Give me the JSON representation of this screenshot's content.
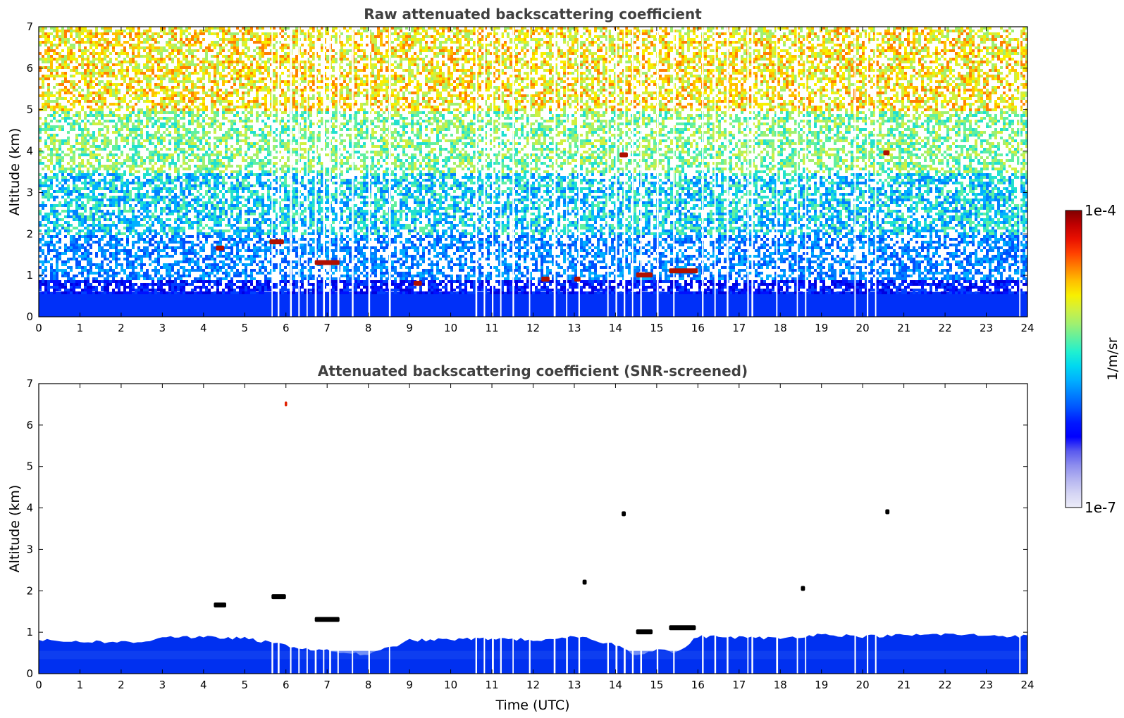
{
  "chart_data": [
    {
      "type": "heatmap",
      "title": "Raw attenuated backscattering coefficient",
      "xlabel": "",
      "ylabel": "Altitude (km)",
      "xlim": [
        0,
        24
      ],
      "ylim": [
        0,
        7
      ],
      "xticks": [
        "0",
        "1",
        "2",
        "3",
        "4",
        "5",
        "6",
        "7",
        "8",
        "9",
        "10",
        "11",
        "12",
        "13",
        "14",
        "15",
        "16",
        "17",
        "18",
        "19",
        "20",
        "21",
        "22",
        "23",
        "24"
      ],
      "yticks": [
        "0",
        "1",
        "2",
        "3",
        "4",
        "5",
        "6",
        "7"
      ],
      "blue_layer_top_km": 0.6,
      "noise_fills_full_altitude": true,
      "cloud_features": [
        {
          "time_start": 4.3,
          "time_end": 4.5,
          "alt_km": 1.65,
          "color": "#b01000"
        },
        {
          "time_start": 5.6,
          "time_end": 5.95,
          "alt_km": 1.8,
          "color": "#b01000"
        },
        {
          "time_start": 6.7,
          "time_end": 7.3,
          "alt_km": 1.3,
          "color": "#b01000"
        },
        {
          "time_start": 9.1,
          "time_end": 9.3,
          "alt_km": 0.8,
          "color": "#b01000"
        },
        {
          "time_start": 12.2,
          "time_end": 12.4,
          "alt_km": 0.9,
          "color": "#b01000"
        },
        {
          "time_start": 13.0,
          "time_end": 13.15,
          "alt_km": 0.9,
          "color": "#b01000"
        },
        {
          "time_start": 14.1,
          "time_end": 14.3,
          "alt_km": 3.9,
          "color": "#b01000"
        },
        {
          "time_start": 14.5,
          "time_end": 14.9,
          "alt_km": 1.0,
          "color": "#b01000"
        },
        {
          "time_start": 15.3,
          "time_end": 16.0,
          "alt_km": 1.1,
          "color": "#b01000"
        },
        {
          "time_start": 20.5,
          "time_end": 20.65,
          "alt_km": 3.95,
          "color": "#b01000"
        }
      ]
    },
    {
      "type": "heatmap",
      "title": "Attenuated backscattering coefficient (SNR-screened)",
      "xlabel": "Time (UTC)",
      "ylabel": "Altitude (km)",
      "xlim": [
        0,
        24
      ],
      "ylim": [
        0,
        7
      ],
      "xticks": [
        "0",
        "1",
        "2",
        "3",
        "4",
        "5",
        "6",
        "7",
        "8",
        "9",
        "10",
        "11",
        "12",
        "13",
        "14",
        "15",
        "16",
        "17",
        "18",
        "19",
        "20",
        "21",
        "22",
        "23",
        "24"
      ],
      "yticks": [
        "0",
        "1",
        "2",
        "3",
        "4",
        "5",
        "6",
        "7"
      ],
      "blue_layer_top_km": [
        [
          0,
          0.8
        ],
        [
          2.5,
          0.75
        ],
        [
          3,
          0.9
        ],
        [
          5,
          0.85
        ],
        [
          6.5,
          0.6
        ],
        [
          8,
          0.45
        ],
        [
          9,
          0.8
        ],
        [
          11,
          0.85
        ],
        [
          12.5,
          0.8
        ],
        [
          13,
          0.9
        ],
        [
          14,
          0.7
        ],
        [
          14.5,
          0.45
        ],
        [
          15,
          0.6
        ],
        [
          15.5,
          0.5
        ],
        [
          16,
          0.9
        ],
        [
          18,
          0.85
        ],
        [
          19,
          0.95
        ],
        [
          20,
          0.9
        ],
        [
          22,
          0.95
        ],
        [
          24,
          0.9
        ]
      ],
      "cloud_features": [
        {
          "time_start": 4.25,
          "time_end": 4.55,
          "alt_km": 1.65,
          "color": "#000000"
        },
        {
          "time_start": 5.65,
          "time_end": 6.0,
          "alt_km": 1.85,
          "color": "#000000"
        },
        {
          "time_start": 6.7,
          "time_end": 7.3,
          "alt_km": 1.3,
          "color": "#000000"
        },
        {
          "time_start": 13.2,
          "time_end": 13.3,
          "alt_km": 2.2,
          "color": "#000000"
        },
        {
          "time_start": 14.15,
          "time_end": 14.25,
          "alt_km": 3.85,
          "color": "#000000"
        },
        {
          "time_start": 14.5,
          "time_end": 14.9,
          "alt_km": 1.0,
          "color": "#000000"
        },
        {
          "time_start": 15.3,
          "time_end": 15.95,
          "alt_km": 1.1,
          "color": "#000000"
        },
        {
          "time_start": 18.5,
          "time_end": 18.6,
          "alt_km": 2.05,
          "color": "#000000"
        },
        {
          "time_start": 20.55,
          "time_end": 20.65,
          "alt_km": 3.9,
          "color": "#000000"
        },
        {
          "time_start": 5.97,
          "time_end": 6.03,
          "alt_km": 6.5,
          "color": "#e02000"
        }
      ]
    }
  ],
  "colorbar": {
    "label": "1/m/sr",
    "max_label": "1e-4",
    "min_label": "1e-7",
    "scale": "log",
    "range": [
      1e-07,
      0.0001
    ],
    "colors": [
      "#ececf8",
      "#d4d4f4",
      "#b4b4f0",
      "#8c8cee",
      "#5a5aee",
      "#0000ff",
      "#0018ff",
      "#0050ff",
      "#0080ff",
      "#00b0ff",
      "#00d8f0",
      "#20f0d0",
      "#60f0a0",
      "#a0f070",
      "#d0f040",
      "#f8f000",
      "#ffc000",
      "#ff8000",
      "#ff4000",
      "#e81000",
      "#c00000",
      "#800000"
    ]
  }
}
